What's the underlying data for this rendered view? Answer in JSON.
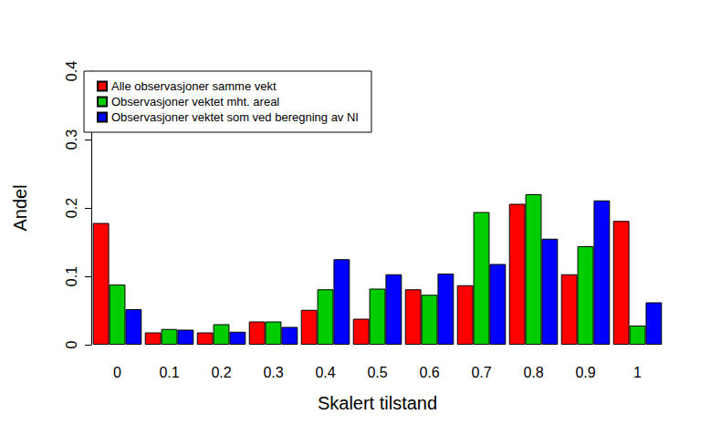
{
  "chart_data": {
    "type": "bar",
    "x_label": "Skalert tilstand",
    "y_label": "Andel",
    "categories": [
      "0",
      "0.1",
      "0.2",
      "0.3",
      "0.4",
      "0.5",
      "0.6",
      "0.7",
      "0.8",
      "0.9",
      "1"
    ],
    "series": [
      {
        "name": "Alle observasjoner samme vekt",
        "color": "#ff0000",
        "values": [
          0.178,
          0.018,
          0.018,
          0.034,
          0.051,
          0.038,
          0.081,
          0.087,
          0.206,
          0.103,
          0.181
        ]
      },
      {
        "name": "Observasjoner vektet mht. areal",
        "color": "#00cd00",
        "values": [
          0.088,
          0.023,
          0.03,
          0.034,
          0.081,
          0.082,
          0.073,
          0.194,
          0.22,
          0.144,
          0.028
        ]
      },
      {
        "name": "Observasjoner vektet som ved beregning av NI",
        "color": "#0000ff",
        "values": [
          0.052,
          0.022,
          0.019,
          0.026,
          0.125,
          0.103,
          0.104,
          0.118,
          0.155,
          0.211,
          0.062
        ]
      }
    ],
    "ylim": [
      0,
      0.4
    ],
    "yticks": [
      0,
      0.1,
      0.2,
      0.3,
      0.4
    ],
    "grid": false,
    "legend": "top-left"
  }
}
